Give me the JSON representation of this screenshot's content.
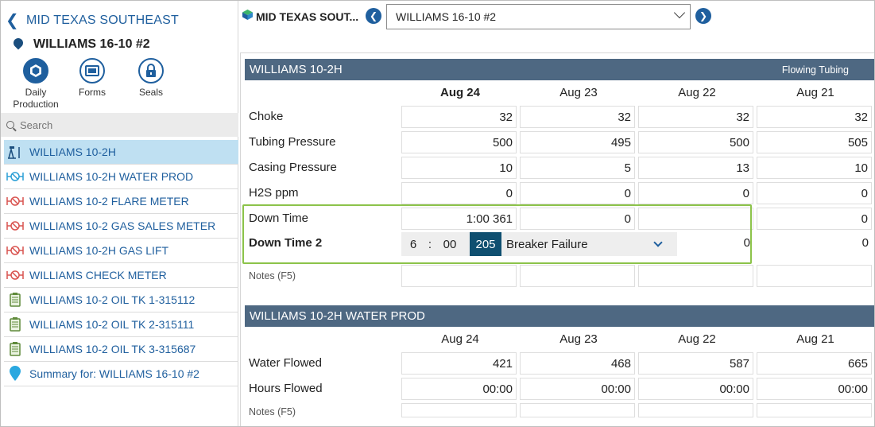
{
  "nav": {
    "area": "MID TEXAS SOUTHEAST",
    "well": "WILLIAMS 16-10 #2",
    "site": "MID TEXAS SOUT...",
    "selected": "WILLIAMS 16-10 #2"
  },
  "quick_actions": [
    {
      "label_line1": "Daily",
      "label_line2": "Production",
      "icon": "hexagon-icon"
    },
    {
      "label_line1": "Forms",
      "label_line2": "",
      "icon": "form-icon"
    },
    {
      "label_line1": "Seals",
      "label_line2": "",
      "icon": "lock-icon"
    }
  ],
  "search": {
    "placeholder": "Search"
  },
  "list": [
    {
      "label": "WILLIAMS 10-2H",
      "icon": "well-pump-icon",
      "color": "#1b4e7e"
    },
    {
      "label": "WILLIAMS 10-2H WATER PROD",
      "icon": "meter-icon",
      "color": "#2a9fd6"
    },
    {
      "label": "WILLIAMS 10-2 FLARE METER",
      "icon": "meter-icon",
      "color": "#d9534f"
    },
    {
      "label": "WILLIAMS 10-2 GAS SALES METER",
      "icon": "meter-icon",
      "color": "#d9534f"
    },
    {
      "label": "WILLIAMS 10-2H GAS LIFT",
      "icon": "meter-icon",
      "color": "#d9534f"
    },
    {
      "label": "WILLIAMS CHECK METER",
      "icon": "meter-icon",
      "color": "#d9534f"
    },
    {
      "label": "WILLIAMS 10-2 OIL TK 1-315112",
      "icon": "tank-icon",
      "color": "#5f8a3a"
    },
    {
      "label": "WILLIAMS 10-2 OIL TK 2-315111",
      "icon": "tank-icon",
      "color": "#5f8a3a"
    },
    {
      "label": "WILLIAMS 10-2 OIL TK 3-315687",
      "icon": "tank-icon",
      "color": "#5f8a3a"
    },
    {
      "label": "Summary for: WILLIAMS 16-10 #2",
      "icon": "summary-pin-icon",
      "color": "#2aa8e0"
    }
  ],
  "section1": {
    "title": "WILLIAMS 10-2H",
    "mode": "Flowing Tubing",
    "dates": [
      "Aug 24",
      "Aug 23",
      "Aug 22",
      "Aug 21"
    ],
    "rows": [
      {
        "label": "Choke",
        "values": [
          "32",
          "32",
          "32",
          "32"
        ]
      },
      {
        "label": "Tubing Pressure",
        "values": [
          "500",
          "495",
          "500",
          "505"
        ]
      },
      {
        "label": "Casing Pressure",
        "values": [
          "10",
          "5",
          "13",
          "10"
        ]
      },
      {
        "label": "H2S ppm",
        "values": [
          "0",
          "0",
          "0",
          "0"
        ]
      },
      {
        "label": "Down Time",
        "values": [
          "1:00 361",
          "0",
          "",
          "0"
        ]
      }
    ],
    "down_time_2": {
      "label": "Down Time 2",
      "hours": "6",
      "sep": ":",
      "minutes": "00",
      "code": "205",
      "reason": "Breaker Failure",
      "v3": "0",
      "v4": "0"
    },
    "notes_label": "Notes (F5)"
  },
  "section2": {
    "title": "WILLIAMS 10-2H WATER PROD",
    "dates": [
      "Aug 24",
      "Aug 23",
      "Aug 22",
      "Aug 21"
    ],
    "rows": [
      {
        "label": "Water Flowed",
        "values": [
          "421",
          "468",
          "587",
          "665"
        ]
      },
      {
        "label": "Hours Flowed",
        "values": [
          "00:00",
          "00:00",
          "00:00",
          "00:00"
        ]
      }
    ],
    "notes_label": "Notes (F5)"
  }
}
